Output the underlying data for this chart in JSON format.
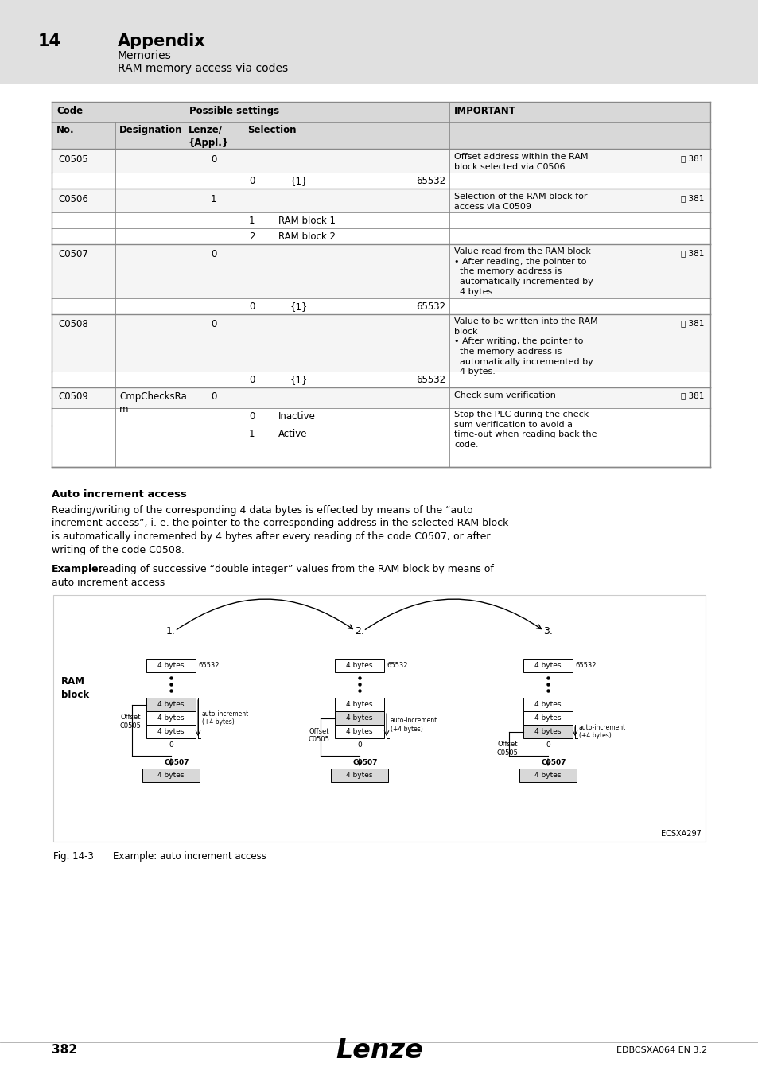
{
  "page_number": "382",
  "chapter_number": "14",
  "chapter_title": "Appendix",
  "subtitle1": "Memories",
  "subtitle2": "RAM memory access via codes",
  "footer_text": "EDBCSXA064 EN 3.2",
  "header_bg": "#e0e0e0",
  "table_header_bg": "#d8d8d8",
  "table_row_alt_bg": "#f5f5f5",
  "section_title": "Auto increment access",
  "body_text1": "Reading/writing of the corresponding 4 data bytes is effected by means of the “auto",
  "body_text2": "increment access”, i. e. the pointer to the corresponding address in the selected RAM block",
  "body_text3": "is automatically incremented by 4 bytes after every reading of the code C0507, or after",
  "body_text4": "writing of the code C0508.",
  "example_label": "Example:",
  "example_text": " reading of successive “double integer” values from the RAM block by means of",
  "example_text2": "auto increment access",
  "fig_caption": "Fig. 14-3",
  "fig_caption2": "Example: auto increment access",
  "fig_label": "ECSXA297"
}
